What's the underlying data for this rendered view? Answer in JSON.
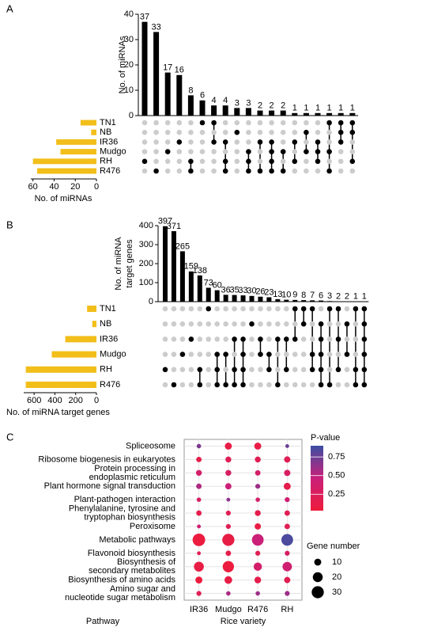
{
  "chart_data": [
    {
      "type": "upset",
      "panel": "A",
      "ylabel": [
        "No. of miRNAs"
      ],
      "values": [
        37,
        33,
        17,
        16,
        8,
        6,
        4,
        4,
        3,
        3,
        2,
        2,
        2,
        1,
        1,
        1,
        1,
        1,
        1
      ],
      "ylim": [
        0,
        40
      ],
      "yticks": [
        0,
        10,
        20,
        30,
        40
      ],
      "sets": [
        "TN1",
        "NB",
        "IR36",
        "Mudgo",
        "RH",
        "R476"
      ],
      "set_sizes": [
        15,
        5,
        38,
        34,
        60,
        56
      ],
      "xlim": [
        0,
        62
      ],
      "xticks": [
        0,
        20,
        40,
        60
      ],
      "xlabel": "No. of miRNAs",
      "matrix": [
        [
          0,
          0,
          0,
          0,
          0,
          1,
          1,
          0,
          0,
          0,
          0,
          0,
          0,
          0,
          0,
          0,
          1,
          1,
          1
        ],
        [
          0,
          0,
          0,
          0,
          0,
          0,
          0,
          0,
          1,
          0,
          0,
          0,
          0,
          0,
          1,
          0,
          0,
          1,
          1
        ],
        [
          0,
          0,
          0,
          1,
          0,
          0,
          1,
          1,
          0,
          0,
          1,
          1,
          0,
          1,
          0,
          1,
          0,
          1,
          0
        ],
        [
          0,
          0,
          1,
          0,
          0,
          0,
          0,
          0,
          0,
          1,
          0,
          1,
          1,
          0,
          1,
          1,
          1,
          0,
          0
        ],
        [
          1,
          0,
          0,
          0,
          1,
          0,
          0,
          1,
          0,
          1,
          0,
          1,
          0,
          1,
          0,
          1,
          0,
          0,
          1
        ],
        [
          0,
          1,
          0,
          0,
          1,
          0,
          0,
          1,
          0,
          1,
          1,
          1,
          1,
          0,
          0,
          0,
          1,
          0,
          0
        ]
      ],
      "bar_color": "#000000",
      "set_color": "#f2be1a",
      "dot_on": "#000000",
      "dot_off": "#cccccc"
    },
    {
      "type": "upset",
      "panel": "B",
      "ylabel": [
        "No. of miRNA",
        "target genes"
      ],
      "values": [
        397,
        371,
        265,
        159,
        138,
        73,
        60,
        36,
        35,
        33,
        30,
        26,
        23,
        13,
        10,
        9,
        8,
        7,
        6,
        3,
        2,
        2,
        1,
        1
      ],
      "ylim": [
        0,
        400
      ],
      "yticks": [
        0,
        100,
        200,
        300,
        400
      ],
      "sets": [
        "TN1",
        "NB",
        "IR36",
        "Mudgo",
        "RH",
        "R476"
      ],
      "set_sizes": [
        90,
        40,
        300,
        430,
        680,
        680
      ],
      "xlim": [
        0,
        700
      ],
      "xticks": [
        0,
        200,
        400,
        600
      ],
      "xlabel": "No. of miRNA target genes",
      "matrix": [
        [
          0,
          0,
          0,
          0,
          0,
          1,
          0,
          0,
          0,
          0,
          0,
          0,
          0,
          0,
          0,
          1,
          1,
          1,
          0,
          1,
          1,
          0,
          1,
          1
        ],
        [
          0,
          0,
          0,
          0,
          0,
          0,
          0,
          0,
          0,
          0,
          1,
          0,
          0,
          0,
          0,
          0,
          1,
          0,
          1,
          0,
          0,
          1,
          0,
          1
        ],
        [
          0,
          0,
          0,
          1,
          0,
          0,
          0,
          0,
          1,
          1,
          0,
          1,
          0,
          1,
          1,
          1,
          0,
          0,
          1,
          0,
          1,
          0,
          0,
          1
        ],
        [
          0,
          0,
          1,
          0,
          0,
          0,
          1,
          1,
          0,
          1,
          0,
          1,
          1,
          0,
          0,
          0,
          0,
          1,
          1,
          0,
          0,
          1,
          0,
          1
        ],
        [
          1,
          0,
          0,
          0,
          1,
          0,
          1,
          0,
          1,
          1,
          0,
          0,
          1,
          0,
          1,
          0,
          0,
          1,
          1,
          0,
          1,
          0,
          1,
          1
        ],
        [
          0,
          1,
          0,
          0,
          1,
          0,
          1,
          1,
          1,
          1,
          0,
          0,
          0,
          1,
          0,
          0,
          0,
          0,
          1,
          1,
          0,
          0,
          1,
          1
        ]
      ],
      "bar_color": "#000000",
      "set_color": "#f2be1a",
      "dot_on": "#000000",
      "dot_off": "#cccccc"
    },
    {
      "type": "dotplot",
      "panel": "C",
      "categories": [
        [
          "Spliceosome"
        ],
        [
          "Ribosome biogenesis in eukaryotes"
        ],
        [
          "Protein processing in",
          "endoplasmic reticulum"
        ],
        [
          "Plant hormone signal transduction"
        ],
        [
          "Plant-pathogen interaction"
        ],
        [
          "Phenylalanine, tyrosine and",
          "tryptophan biosynthesis"
        ],
        [
          "Peroxisome"
        ],
        [
          "Metabolic pathways"
        ],
        [
          "Flavonoid biosynthesis"
        ],
        [
          "Biosynthesis of",
          "secondary metabolites"
        ],
        [
          "Biosynthesis of amino acids"
        ],
        [
          "Amino sugar and",
          "nucleotide sugar metabolism"
        ]
      ],
      "x_categories": [
        "IR36",
        "Mudgo",
        "R476",
        "RH"
      ],
      "xlabel": "Rice variety",
      "ylabel": "Pathway",
      "pvalues": [
        [
          0.7,
          0.1,
          0.1,
          0.75
        ],
        [
          0.15,
          0.2,
          0.2,
          0.2
        ],
        [
          0.35,
          0.3,
          0.35,
          0.3
        ],
        [
          0.55,
          0.45,
          0.6,
          0.15
        ],
        [
          0.3,
          0.65,
          0.35,
          0.4
        ],
        [
          0.15,
          0.2,
          0.15,
          0.2
        ],
        [
          0.4,
          0.2,
          0.1,
          0.2
        ],
        [
          0.05,
          0.1,
          0.45,
          0.85
        ],
        [
          0.2,
          0.15,
          0.2,
          0.3
        ],
        [
          0.1,
          0.05,
          0.35,
          0.4
        ],
        [
          0.05,
          0.1,
          0.15,
          0.2
        ],
        [
          0.2,
          0.55,
          0.6,
          0.6
        ]
      ],
      "gene_numbers": [
        [
          4,
          10,
          10,
          3
        ],
        [
          6,
          7,
          7,
          8
        ],
        [
          7,
          7,
          6,
          8
        ],
        [
          6,
          8,
          5,
          10
        ],
        [
          4,
          3,
          4,
          5
        ],
        [
          6,
          5,
          7,
          6
        ],
        [
          3,
          5,
          8,
          6
        ],
        [
          32,
          30,
          28,
          28
        ],
        [
          3,
          6,
          5,
          5
        ],
        [
          20,
          26,
          14,
          18
        ],
        [
          10,
          12,
          9,
          8
        ],
        [
          5,
          4,
          4,
          5
        ]
      ],
      "color_title": "P-value",
      "colorlim": [
        0.03,
        0.9
      ],
      "colorticks": [
        0.25,
        {
          "value": 0.5,
          "label": "0.50"
        },
        0.75
      ],
      "colors": [
        "#ee1c3b",
        "#c9207a",
        "#3b4fa3"
      ],
      "size_title": "Gene number",
      "size_legend": [
        10,
        20,
        30
      ]
    }
  ]
}
